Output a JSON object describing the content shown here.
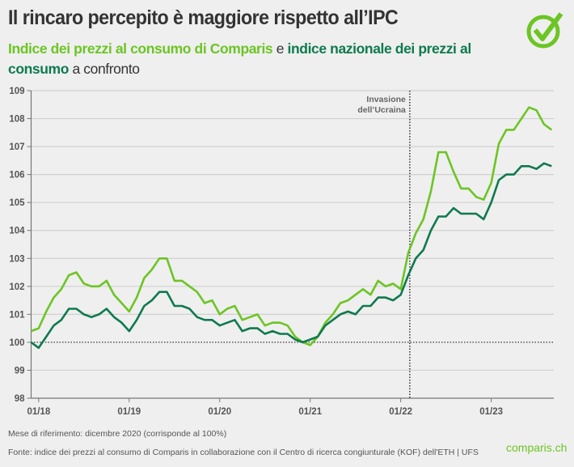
{
  "header": {
    "title": "Il rincaro percepito è maggiore rispetto all’IPC",
    "subtitle_part1": "Indice dei prezzi al consumo di Comparis",
    "subtitle_part2": " e ",
    "subtitle_part3": "indice nazionale dei prezzi al consumo",
    "subtitle_part4": " a confronto"
  },
  "colors": {
    "comparis": "#6cc524",
    "national": "#0e7a4e",
    "background": "#efefef"
  },
  "logo_icon": "checkmark-circle-icon",
  "chart_data": {
    "type": "line",
    "title": "",
    "xlabel": "",
    "ylabel": "",
    "ylim": [
      98,
      109
    ],
    "yticks": [
      98,
      99,
      100,
      101,
      102,
      103,
      104,
      105,
      106,
      107,
      108,
      109
    ],
    "xtick_labels": [
      "01/18",
      "01/19",
      "01/20",
      "01/21",
      "01/22",
      "01/23"
    ],
    "x_start": "12/17",
    "x_end": "09/23",
    "x_frequency": "monthly",
    "grid": true,
    "reference_line": {
      "y": 100,
      "style": "dotted"
    },
    "annotation": {
      "x": "02/22",
      "line1": "Invasione",
      "line2": "dell’Ucraina",
      "style": "dotted vertical line"
    },
    "series": [
      {
        "name": "Indice dei prezzi al consumo di Comparis",
        "color": "#6cc524",
        "values": [
          100.4,
          100.5,
          101.1,
          101.6,
          101.9,
          102.4,
          102.5,
          102.1,
          102.0,
          102.0,
          102.2,
          101.7,
          101.4,
          101.1,
          101.6,
          102.3,
          102.6,
          103.0,
          103.0,
          102.2,
          102.2,
          102.0,
          101.8,
          101.4,
          101.5,
          101.0,
          101.2,
          101.3,
          100.8,
          100.9,
          101.0,
          100.6,
          100.7,
          100.7,
          100.6,
          100.2,
          100.0,
          99.9,
          100.2,
          100.7,
          101.0,
          101.4,
          101.5,
          101.7,
          101.9,
          101.7,
          102.2,
          102.0,
          102.1,
          101.9,
          103.2,
          103.9,
          104.4,
          105.4,
          106.8,
          106.8,
          106.1,
          105.5,
          105.5,
          105.2,
          105.1,
          105.7,
          107.1,
          107.6,
          107.6,
          108.0,
          108.4,
          108.3,
          107.8,
          107.6
        ]
      },
      {
        "name": "indice nazionale dei prezzi al consumo",
        "color": "#0e7a4e",
        "values": [
          100.0,
          99.8,
          100.2,
          100.6,
          100.8,
          101.2,
          101.2,
          101.0,
          100.9,
          101.0,
          101.2,
          100.9,
          100.7,
          100.4,
          100.8,
          101.3,
          101.5,
          101.8,
          101.8,
          101.3,
          101.3,
          101.2,
          100.9,
          100.8,
          100.8,
          100.6,
          100.7,
          100.8,
          100.4,
          100.5,
          100.5,
          100.3,
          100.4,
          100.3,
          100.3,
          100.1,
          100.0,
          100.1,
          100.2,
          100.6,
          100.8,
          101.0,
          101.1,
          101.0,
          101.3,
          101.3,
          101.6,
          101.6,
          101.5,
          101.7,
          102.4,
          103.0,
          103.3,
          104.0,
          104.5,
          104.5,
          104.8,
          104.6,
          104.6,
          104.6,
          104.4,
          105.0,
          105.8,
          106.0,
          106.0,
          106.3,
          106.3,
          106.2,
          106.4,
          106.3
        ]
      }
    ]
  },
  "footer": {
    "reference": "Mese di riferimento: dicembre 2020 (corrisponde al 100%)",
    "source": "Fonte: indice dei prezzi al consumo di Comparis in collaborazione con il Centro di ricerca congiunturale (KOF) dell'ETH | UFS",
    "brand": "comparis.ch"
  }
}
